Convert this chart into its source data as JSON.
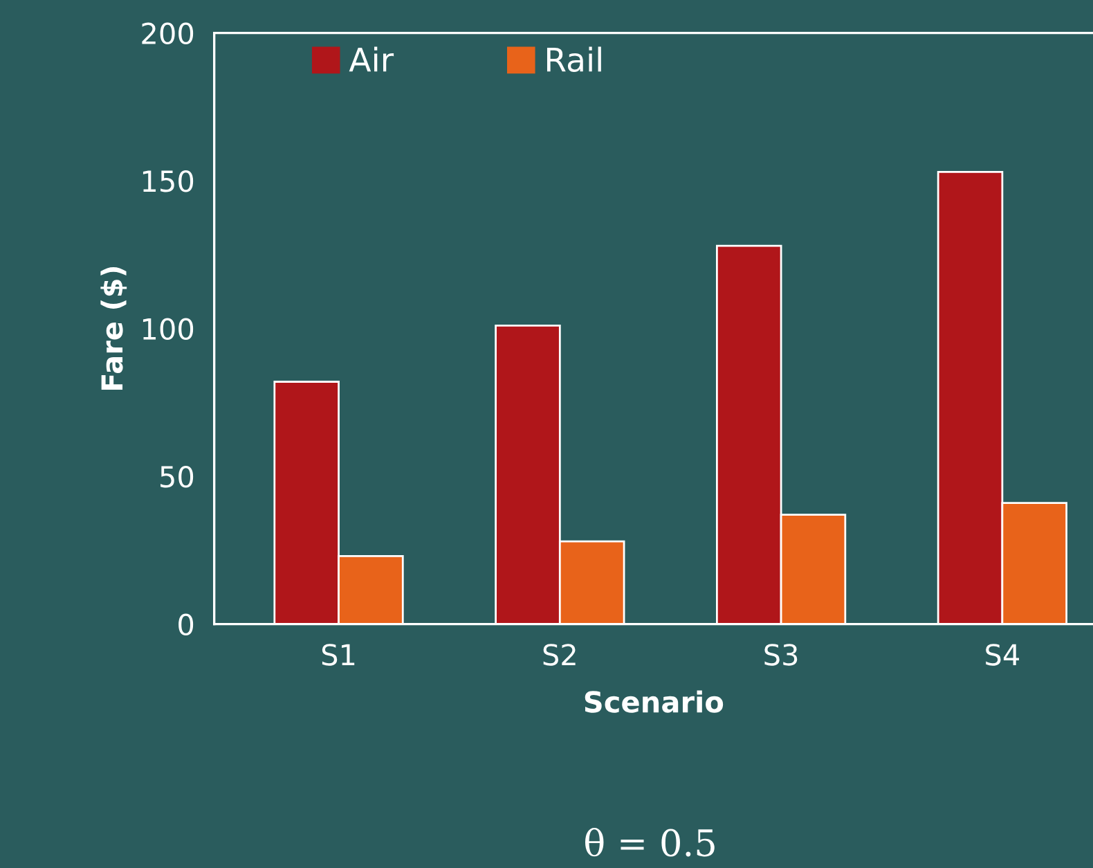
{
  "chart_data": {
    "type": "bar",
    "xlabel": "Scenario",
    "ylabel": "Fare ($)",
    "categories": [
      "S1",
      "S2",
      "S3",
      "S4"
    ],
    "series": [
      {
        "name": "Air",
        "color": "#b0161a",
        "values": [
          82,
          101,
          128,
          153
        ]
      },
      {
        "name": "Rail",
        "color": "#e8631a",
        "values": [
          23,
          28,
          37,
          41
        ]
      }
    ],
    "ylim": [
      0,
      200
    ],
    "yticks": [
      0,
      50,
      100,
      150,
      200
    ],
    "grid": false,
    "legend": "top left",
    "annotations": [
      "θ = 0.5"
    ]
  }
}
